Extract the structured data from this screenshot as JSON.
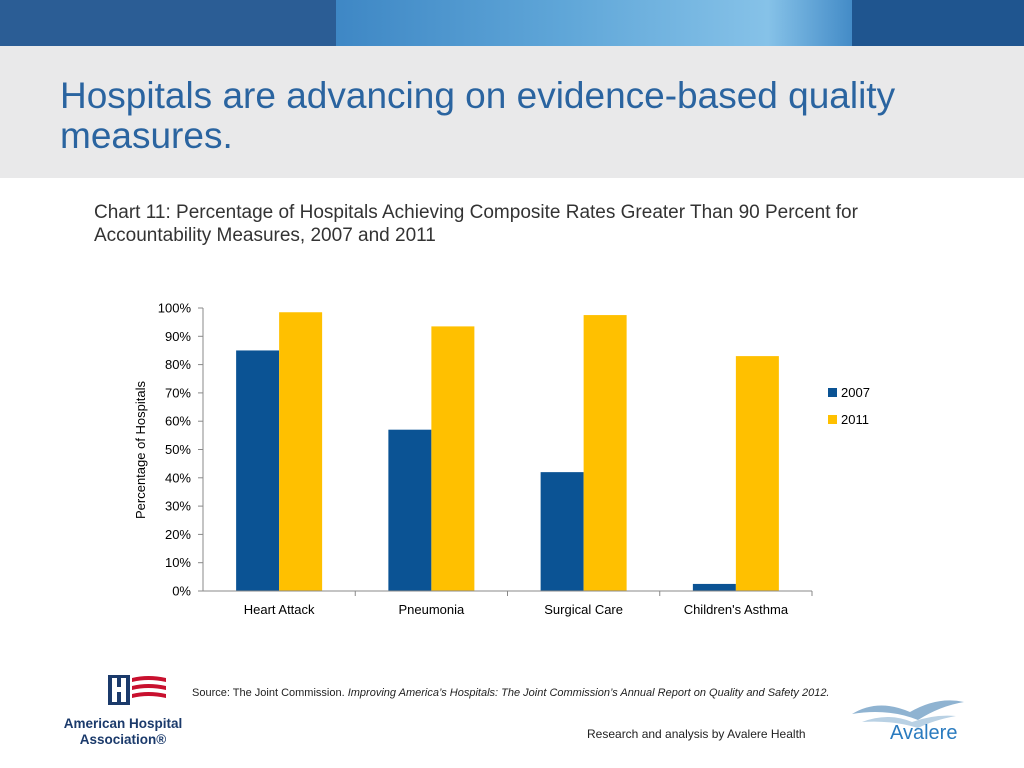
{
  "page": {
    "title": "Hospitals are advancing on evidence-based quality measures.",
    "colors": {
      "title": "#2a64a0",
      "banner": "#1d4f86",
      "title_band": "#e9e9ea"
    }
  },
  "chart_data": {
    "type": "bar",
    "title": "Chart 11: Percentage of Hospitals Achieving Composite Rates Greater Than 90 Percent for Accountability Measures, 2007 and 2011",
    "categories": [
      "Heart Attack",
      "Pneumonia",
      "Surgical Care",
      "Children's Asthma"
    ],
    "series": [
      {
        "name": "2007",
        "color": "#0b5394",
        "values": [
          85,
          57,
          42,
          2.5
        ]
      },
      {
        "name": "2011",
        "color": "#ffc000",
        "values": [
          98.5,
          93.5,
          97.5,
          83
        ]
      }
    ],
    "xlabel": "",
    "ylabel": "Percentage of Hospitals",
    "ylim": [
      0,
      100
    ],
    "yticks": [
      "0%",
      "10%",
      "20%",
      "30%",
      "40%",
      "50%",
      "60%",
      "70%",
      "80%",
      "90%",
      "100%"
    ],
    "grid": false,
    "legend_position": "right"
  },
  "footer": {
    "source_prefix": "Source: The Joint Commission. ",
    "source_title": "Improving America’s Hospitals: The Joint Commission’s Annual Report on Quality and Safety 2012.",
    "credit": "Research and analysis by Avalere Health",
    "aha_logo_text": "American Hospital Association®",
    "avalere_logo_text": "Avalere"
  }
}
